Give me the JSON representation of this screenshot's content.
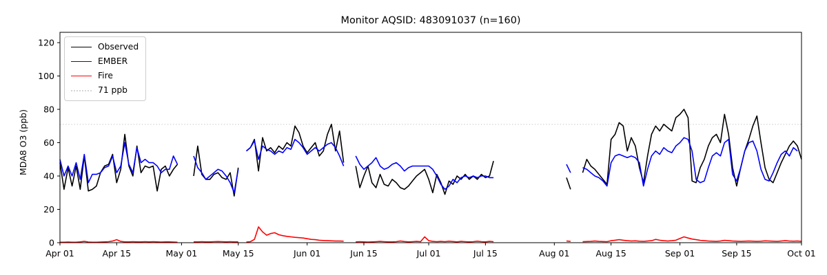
{
  "chart_data": {
    "type": "line",
    "title": "Monitor AQSID: 483091037 (n=160)",
    "xlabel": "",
    "ylabel": "MDA8 O3 (ppb)",
    "ylim": [
      0,
      126.2
    ],
    "x_range_days": [
      0,
      183
    ],
    "grid": false,
    "legend_position": "upper-left",
    "background_color": "#ffffff",
    "axis_color": "#000000",
    "y_ticks": [
      0,
      20,
      40,
      60,
      80,
      100,
      120
    ],
    "x_ticks": [
      {
        "day": 0,
        "label": "Apr 01"
      },
      {
        "day": 14,
        "label": "Apr 15"
      },
      {
        "day": 30,
        "label": "May 01"
      },
      {
        "day": 44,
        "label": "May 15"
      },
      {
        "day": 61,
        "label": "Jun 01"
      },
      {
        "day": 75,
        "label": "Jun 15"
      },
      {
        "day": 91,
        "label": "Jul 01"
      },
      {
        "day": 105,
        "label": "Jul 15"
      },
      {
        "day": 122,
        "label": "Aug 01"
      },
      {
        "day": 136,
        "label": "Aug 15"
      },
      {
        "day": 153,
        "label": "Sep 01"
      },
      {
        "day": 167,
        "label": "Sep 15"
      },
      {
        "day": 183,
        "label": "Oct 01"
      }
    ],
    "threshold": {
      "label": "71 ppb",
      "value": 71,
      "color": "#d3d3d3",
      "style": "dotted"
    },
    "legend_items": [
      {
        "label": "Observed",
        "color": "#000000",
        "style": "solid"
      },
      {
        "label": "EMBER",
        "color": "#0000ff",
        "style": "solid"
      },
      {
        "label": "Fire",
        "color": "#ff0000",
        "style": "solid"
      },
      {
        "label": "71 ppb",
        "color": "#d3d3d3",
        "style": "dotted"
      }
    ],
    "series": [
      {
        "name": "Observed",
        "color": "#000000",
        "values": [
          48,
          32,
          45,
          34,
          46,
          32,
          52,
          31,
          32,
          34,
          42,
          46,
          47,
          53,
          36,
          44,
          65,
          46,
          40,
          58,
          42,
          46,
          45,
          46,
          31,
          44,
          46,
          40,
          44,
          47,
          null,
          null,
          null,
          40,
          58,
          41,
          38,
          38,
          41,
          42,
          39,
          38,
          42,
          28,
          45,
          null,
          55,
          57,
          62,
          43,
          63,
          55,
          57,
          54,
          58,
          56,
          60,
          58,
          70,
          66,
          58,
          54,
          57,
          60,
          52,
          55,
          65,
          71,
          55,
          67,
          48,
          null,
          null,
          46,
          33,
          40,
          46,
          36,
          33,
          41,
          35,
          34,
          38,
          36,
          33,
          32,
          34,
          37,
          40,
          42,
          44,
          38,
          30,
          41,
          36,
          29,
          37,
          35,
          40,
          38,
          41,
          38,
          40,
          38,
          41,
          39,
          40,
          49,
          null,
          null,
          null,
          null,
          null,
          null,
          null,
          null,
          null,
          null,
          null,
          null,
          null,
          null,
          null,
          null,
          null,
          39,
          32,
          null,
          null,
          42,
          50,
          46,
          44,
          41,
          38,
          35,
          62,
          65,
          72,
          70,
          55,
          63,
          58,
          45,
          36,
          52,
          65,
          70,
          67,
          71,
          69,
          67,
          75,
          77,
          80,
          75,
          37,
          36,
          45,
          50,
          58,
          63,
          65,
          60,
          77,
          65,
          45,
          34,
          45,
          55,
          62,
          70,
          76,
          60,
          45,
          38,
          36,
          42,
          48,
          53,
          58,
          61,
          58,
          50
        ]
      },
      {
        "name": "EMBER",
        "color": "#0000ff",
        "values": [
          50,
          40,
          46,
          40,
          48,
          38,
          53,
          36,
          41,
          41,
          42,
          45,
          46,
          52,
          42,
          46,
          60,
          47,
          42,
          57,
          48,
          50,
          48,
          48,
          46,
          42,
          44,
          44,
          52,
          47,
          null,
          null,
          null,
          52,
          45,
          42,
          38,
          40,
          42,
          44,
          43,
          40,
          36,
          30,
          44,
          null,
          55,
          57,
          61,
          50,
          58,
          56,
          55,
          53,
          55,
          54,
          57,
          56,
          62,
          60,
          57,
          53,
          55,
          57,
          55,
          57,
          59,
          60,
          57,
          52,
          46,
          null,
          null,
          52,
          47,
          44,
          46,
          48,
          51,
          46,
          44,
          45,
          47,
          48,
          46,
          43,
          45,
          46,
          46,
          46,
          46,
          46,
          44,
          40,
          35,
          32,
          34,
          38,
          36,
          39,
          40,
          39,
          40,
          39,
          40,
          40,
          39,
          39,
          null,
          null,
          null,
          null,
          null,
          null,
          null,
          null,
          null,
          null,
          null,
          null,
          null,
          null,
          null,
          null,
          null,
          47,
          42,
          null,
          null,
          45,
          44,
          42,
          40,
          39,
          37,
          34,
          48,
          52,
          53,
          52,
          51,
          52,
          51,
          48,
          34,
          44,
          52,
          55,
          53,
          57,
          55,
          54,
          58,
          60,
          63,
          62,
          55,
          38,
          36,
          37,
          45,
          52,
          54,
          52,
          60,
          62,
          41,
          37,
          45,
          55,
          60,
          61,
          55,
          44,
          38,
          37,
          42,
          48,
          53,
          55,
          52,
          57,
          55,
          null
        ]
      },
      {
        "name": "Fire",
        "color": "#ff0000",
        "values": [
          0.3,
          0.3,
          0.4,
          0.3,
          0.3,
          0.5,
          0.8,
          0.4,
          0.3,
          0.3,
          0.4,
          0.5,
          0.6,
          1.0,
          1.8,
          0.8,
          0.5,
          0.5,
          0.6,
          0.5,
          0.5,
          0.6,
          0.5,
          0.6,
          0.5,
          0.4,
          0.5,
          0.5,
          0.4,
          0.3,
          null,
          null,
          null,
          0.5,
          0.5,
          0.6,
          0.5,
          0.5,
          0.6,
          0.7,
          0.6,
          0.5,
          0.6,
          0.5,
          0.5,
          null,
          0.4,
          0.6,
          2.0,
          9.5,
          6.5,
          4.5,
          5.5,
          6.0,
          4.8,
          4.2,
          3.8,
          3.5,
          3.2,
          3.0,
          2.8,
          2.4,
          2.0,
          1.8,
          1.5,
          1.3,
          1.2,
          1.1,
          1.0,
          1.0,
          0.9,
          null,
          null,
          0.5,
          0.6,
          0.5,
          0.4,
          0.5,
          0.6,
          0.8,
          0.6,
          0.5,
          0.5,
          0.6,
          1.0,
          0.7,
          0.5,
          0.6,
          0.8,
          0.6,
          3.5,
          1.2,
          0.8,
          0.6,
          0.8,
          0.6,
          0.9,
          0.7,
          0.5,
          0.8,
          0.6,
          0.5,
          0.6,
          0.9,
          0.6,
          0.5,
          0.8,
          0.6,
          null,
          null,
          null,
          null,
          null,
          null,
          null,
          null,
          null,
          null,
          null,
          null,
          null,
          null,
          null,
          null,
          null,
          1.0,
          0.8,
          null,
          null,
          0.6,
          0.7,
          0.8,
          1.0,
          0.8,
          0.7,
          0.6,
          1.2,
          1.5,
          1.8,
          1.5,
          1.2,
          1.0,
          1.1,
          0.9,
          0.8,
          1.0,
          1.2,
          2.0,
          1.5,
          1.2,
          1.0,
          1.2,
          1.5,
          2.5,
          3.5,
          2.8,
          2.2,
          1.8,
          1.4,
          1.2,
          1.0,
          0.9,
          0.8,
          1.0,
          1.4,
          1.2,
          1.0,
          0.9,
          0.8,
          0.9,
          1.0,
          0.9,
          0.8,
          0.9,
          1.1,
          1.0,
          0.9,
          0.8,
          1.0,
          1.2,
          1.0,
          0.9,
          1.0,
          0.8
        ]
      }
    ]
  }
}
